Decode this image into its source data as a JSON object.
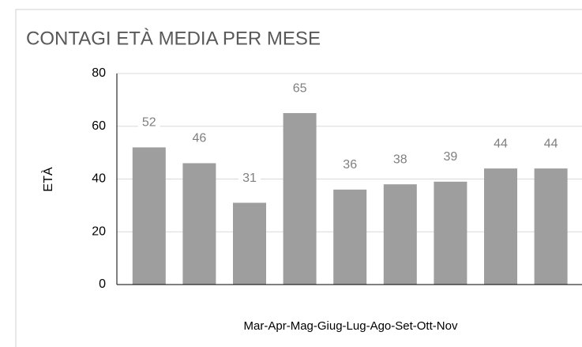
{
  "chart_data": {
    "type": "bar",
    "title": "CONTAGI ETÀ MEDIA PER MESE",
    "y_label": "ETÀ",
    "x_label": "Mar-Apr-Mag-Giug-Lug-Ago-Set-Ott-Nov",
    "categories": [
      null,
      null,
      null,
      null,
      null,
      null,
      null,
      null,
      null
    ],
    "values": [
      52,
      46,
      31,
      65,
      36,
      38,
      39,
      44,
      44
    ],
    "color": "#9e9e9e",
    "ylim": [
      0,
      80
    ],
    "yticks": [
      0,
      20,
      40,
      60,
      80
    ],
    "grid": true
  }
}
